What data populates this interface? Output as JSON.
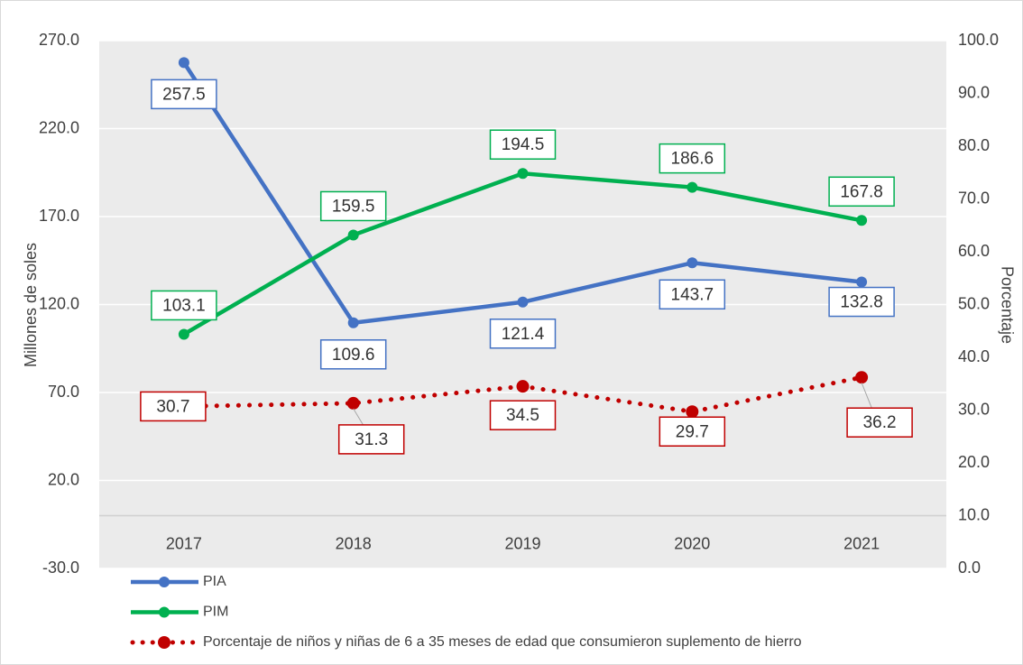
{
  "chart_data": {
    "type": "line",
    "categories": [
      "2017",
      "2018",
      "2019",
      "2020",
      "2021"
    ],
    "series": [
      {
        "name": "PIA",
        "color": "#4472c4",
        "values": [
          257.5,
          109.6,
          121.4,
          143.7,
          132.8
        ]
      },
      {
        "name": "PIM",
        "color": "#00b050",
        "values": [
          103.1,
          159.5,
          194.5,
          186.6,
          167.8
        ]
      },
      {
        "name": "Porcentaje de niños y niñas de 6 a 35 meses de edad que consumieron suplemento de hierro",
        "color": "#c00000",
        "values": [
          30.7,
          31.3,
          34.5,
          29.7,
          36.2
        ],
        "axis": "y2",
        "dotted": true
      }
    ],
    "ylabel": "Millones de soles",
    "y2label": "Porcentaje",
    "ylim": [
      -30,
      270
    ],
    "yticks": [
      {
        "value": -30,
        "label": "-30.0"
      },
      {
        "value": 20,
        "label": "20.0"
      },
      {
        "value": 70,
        "label": "70.0"
      },
      {
        "value": 120,
        "label": "120.0"
      },
      {
        "value": 170,
        "label": "170.0"
      },
      {
        "value": 220,
        "label": "220.0"
      },
      {
        "value": 270,
        "label": "270.0"
      }
    ],
    "y2lim": [
      0,
      100
    ],
    "y2ticks": [
      {
        "value": 0,
        "label": "0.0"
      },
      {
        "value": 10,
        "label": "10.0"
      },
      {
        "value": 20,
        "label": "20.0"
      },
      {
        "value": 30,
        "label": "30.0"
      },
      {
        "value": 40,
        "label": "40.0"
      },
      {
        "value": 50,
        "label": "50.0"
      },
      {
        "value": 60,
        "label": "60.0"
      },
      {
        "value": 70,
        "label": "70.0"
      },
      {
        "value": 80,
        "label": "80.0"
      },
      {
        "value": 90,
        "label": "90.0"
      },
      {
        "value": 100,
        "label": "100.0"
      }
    ],
    "grid": true
  }
}
